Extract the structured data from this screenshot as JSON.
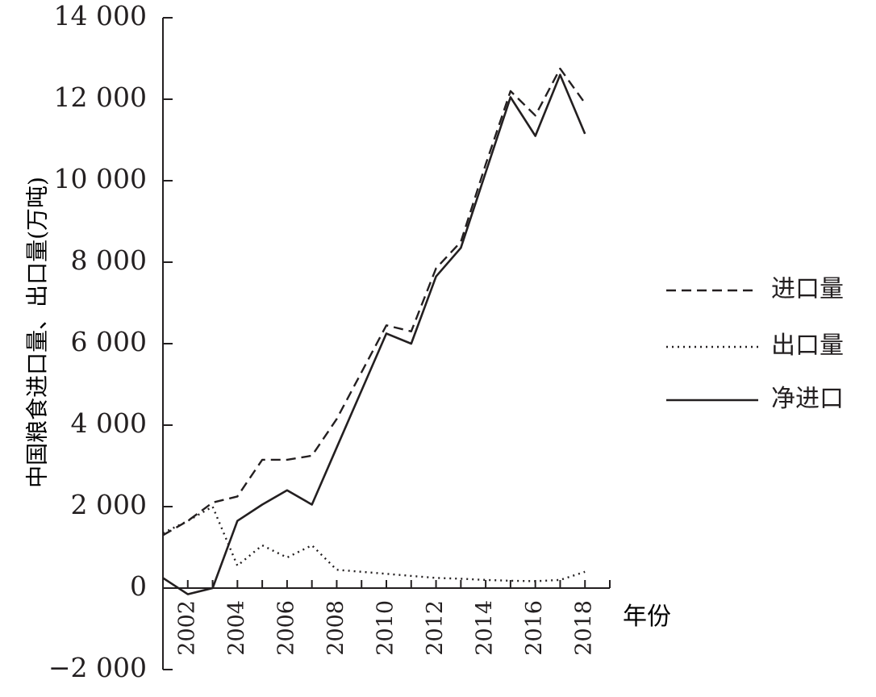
{
  "chart_data": {
    "type": "line",
    "ylabel": "中国粮食进口量、出口量(万吨)",
    "xlabel": "年份",
    "ylim": [
      -2000,
      14000
    ],
    "xlim": [
      2001,
      2019
    ],
    "y_ticks": [
      14000,
      12000,
      10000,
      8000,
      6000,
      4000,
      2000,
      0,
      -2000
    ],
    "y_tick_labels": [
      "14 000",
      "12 000",
      "10 000",
      "8 000",
      "6 000",
      "4 000",
      "2 000",
      "0",
      "−2 000"
    ],
    "x_ticks": [
      2002,
      2004,
      2006,
      2008,
      2010,
      2012,
      2014,
      2016,
      2018
    ],
    "x_tick_labels": [
      "2002",
      "2004",
      "2006",
      "2008",
      "2010",
      "2012",
      "2014",
      "2016",
      "2018"
    ],
    "legend_position": "right",
    "grid": false,
    "series": [
      {
        "name": "进口量",
        "style": "dashed",
        "x": [
          2001,
          2002,
          2003,
          2004,
          2005,
          2006,
          2007,
          2008,
          2009,
          2010,
          2011,
          2012,
          2013,
          2014,
          2015,
          2016,
          2017,
          2018
        ],
        "y": [
          1300,
          1650,
          2100,
          2250,
          3150,
          3150,
          3250,
          4150,
          5300,
          6450,
          6300,
          7850,
          8500,
          10400,
          12200,
          11600,
          12750,
          11900
        ]
      },
      {
        "name": "出口量",
        "style": "dotted",
        "x": [
          2001,
          2002,
          2003,
          2004,
          2005,
          2006,
          2007,
          2008,
          2009,
          2010,
          2011,
          2012,
          2013,
          2014,
          2015,
          2016,
          2017,
          2018
        ],
        "y": [
          1350,
          1650,
          2000,
          550,
          1050,
          750,
          1050,
          450,
          400,
          350,
          300,
          250,
          230,
          200,
          180,
          170,
          200,
          400
        ]
      },
      {
        "name": "净进口",
        "style": "solid",
        "x": [
          2001,
          2002,
          2003,
          2004,
          2005,
          2006,
          2007,
          2008,
          2009,
          2010,
          2011,
          2012,
          2013,
          2014,
          2015,
          2016,
          2017,
          2018
        ],
        "y": [
          250,
          -150,
          0,
          1650,
          2050,
          2400,
          2050,
          3450,
          4850,
          6250,
          6000,
          7650,
          8350,
          10200,
          12050,
          11100,
          12600,
          11150
        ]
      }
    ]
  }
}
